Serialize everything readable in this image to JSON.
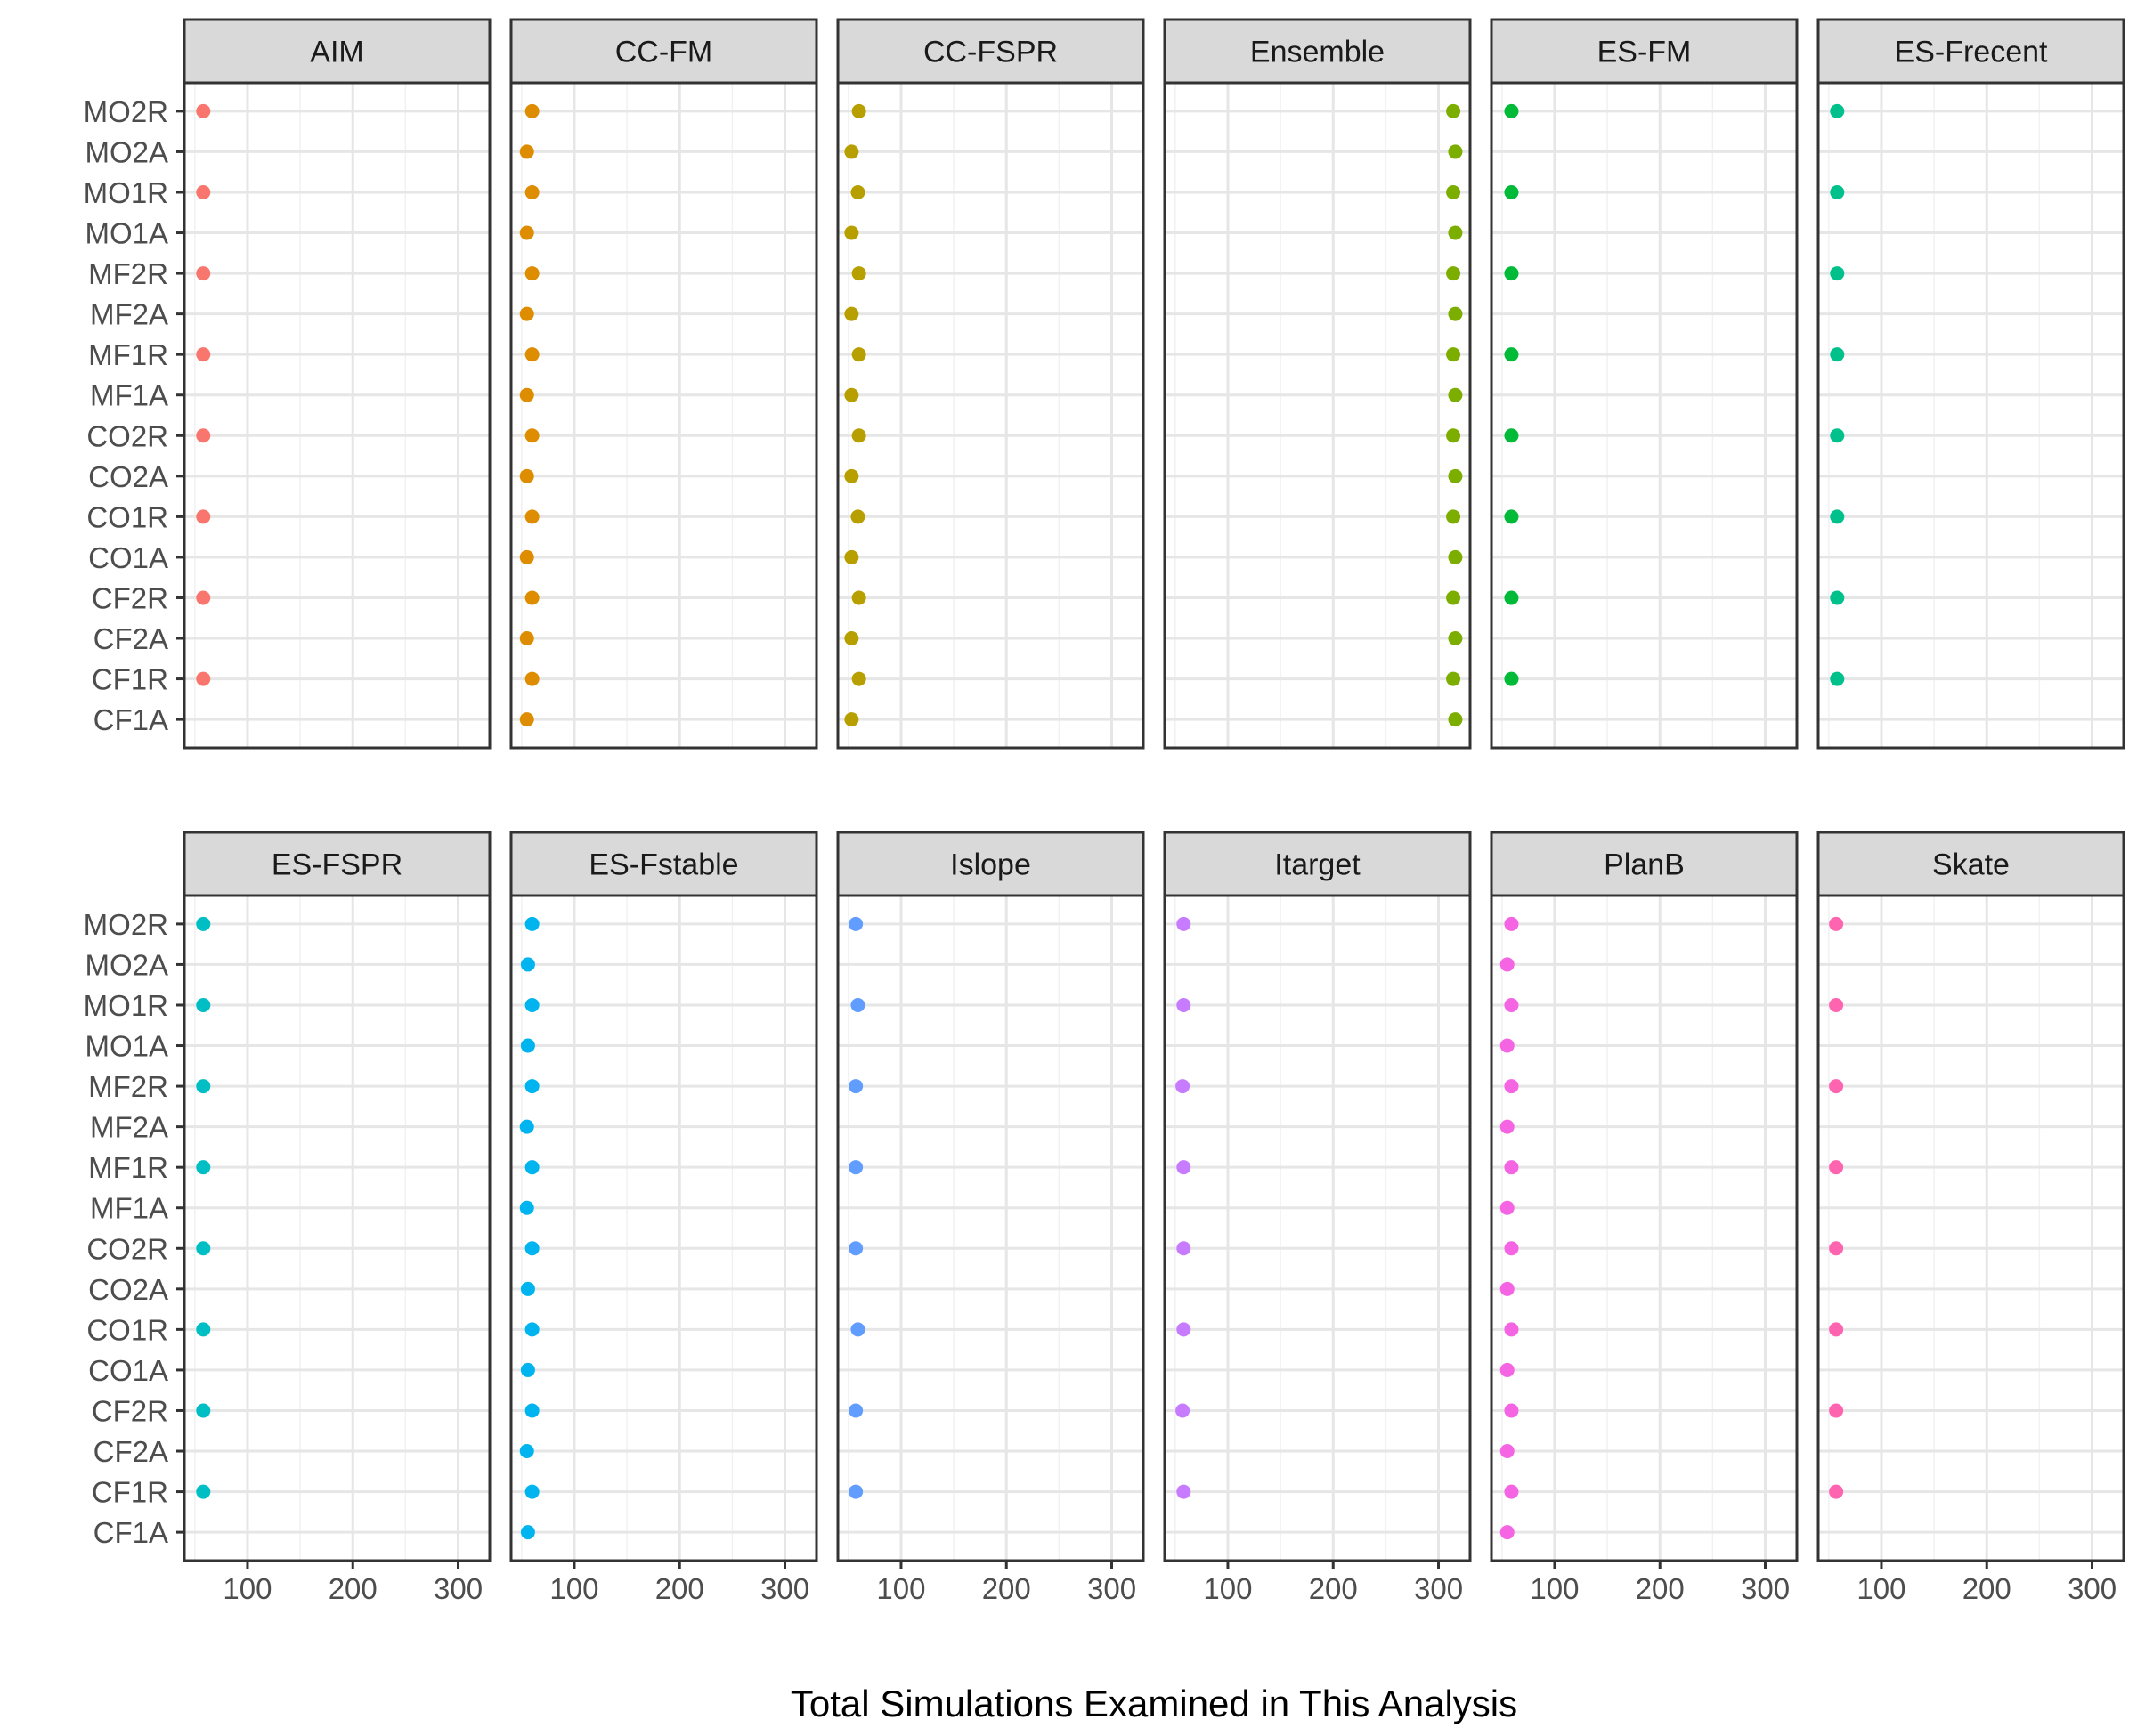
{
  "chart_data": {
    "type": "scatter",
    "facet_layout": "2 rows x 6 columns",
    "xlabel": "Total Simulations Examined in This Analysis",
    "ylabel": "",
    "title": "",
    "xlim": [
      40,
      330
    ],
    "x_ticks": [
      100,
      200,
      300
    ],
    "grid": true,
    "legend": "none",
    "categories": [
      "MO2R",
      "MO2A",
      "MO1R",
      "MO1A",
      "MF2R",
      "MF2A",
      "MF1R",
      "MF1A",
      "CO2R",
      "CO2A",
      "CO1R",
      "CO1A",
      "CF2R",
      "CF2A",
      "CF1R",
      "CF1A"
    ],
    "series": [
      {
        "name": "AIM",
        "color": "#F8766D",
        "values": [
          58,
          null,
          58,
          null,
          58,
          null,
          58,
          null,
          58,
          null,
          58,
          null,
          58,
          null,
          58,
          null
        ]
      },
      {
        "name": "CC-FM",
        "color": "#DE8C00",
        "values": [
          60,
          55,
          60,
          55,
          60,
          55,
          60,
          55,
          60,
          55,
          60,
          55,
          60,
          55,
          60,
          55
        ]
      },
      {
        "name": "CC-FSPR",
        "color": "#B79F00",
        "values": [
          60,
          53,
          59,
          53,
          60,
          53,
          60,
          53,
          60,
          53,
          59,
          53,
          60,
          53,
          60,
          53
        ]
      },
      {
        "name": "Ensemble",
        "color": "#7CAE00",
        "values": [
          314,
          316,
          314,
          316,
          314,
          316,
          314,
          316,
          314,
          316,
          314,
          316,
          314,
          316,
          314,
          316
        ]
      },
      {
        "name": "ES-FM",
        "color": "#00BA38",
        "values": [
          59,
          null,
          59,
          null,
          59,
          null,
          59,
          null,
          59,
          null,
          59,
          null,
          59,
          null,
          59,
          null
        ]
      },
      {
        "name": "ES-Frecent",
        "color": "#00C08B",
        "values": [
          58,
          null,
          58,
          null,
          58,
          null,
          58,
          null,
          58,
          null,
          58,
          null,
          58,
          null,
          58,
          null
        ]
      },
      {
        "name": "ES-FSPR",
        "color": "#00BFC4",
        "values": [
          58,
          null,
          58,
          null,
          58,
          null,
          58,
          null,
          58,
          null,
          58,
          null,
          58,
          null,
          58,
          null
        ]
      },
      {
        "name": "ES-Fstable",
        "color": "#00B4F0",
        "values": [
          60,
          56,
          60,
          56,
          60,
          55,
          60,
          55,
          60,
          56,
          60,
          56,
          60,
          55,
          60,
          56
        ]
      },
      {
        "name": "Islope",
        "color": "#619CFF",
        "values": [
          57,
          null,
          59,
          null,
          57,
          null,
          57,
          null,
          57,
          null,
          59,
          null,
          57,
          null,
          57,
          null
        ]
      },
      {
        "name": "Itarget",
        "color": "#C77CFF",
        "values": [
          58,
          null,
          58,
          null,
          57,
          null,
          58,
          null,
          58,
          null,
          58,
          null,
          57,
          null,
          58,
          null
        ]
      },
      {
        "name": "PlanB",
        "color": "#F564E3",
        "values": [
          59,
          55,
          59,
          55,
          59,
          55,
          59,
          55,
          59,
          55,
          59,
          55,
          59,
          55,
          59,
          55
        ]
      },
      {
        "name": "Skate",
        "color": "#FF64B0",
        "values": [
          57,
          null,
          57,
          null,
          57,
          null,
          57,
          null,
          57,
          null,
          57,
          null,
          57,
          null,
          57,
          null
        ]
      }
    ]
  }
}
